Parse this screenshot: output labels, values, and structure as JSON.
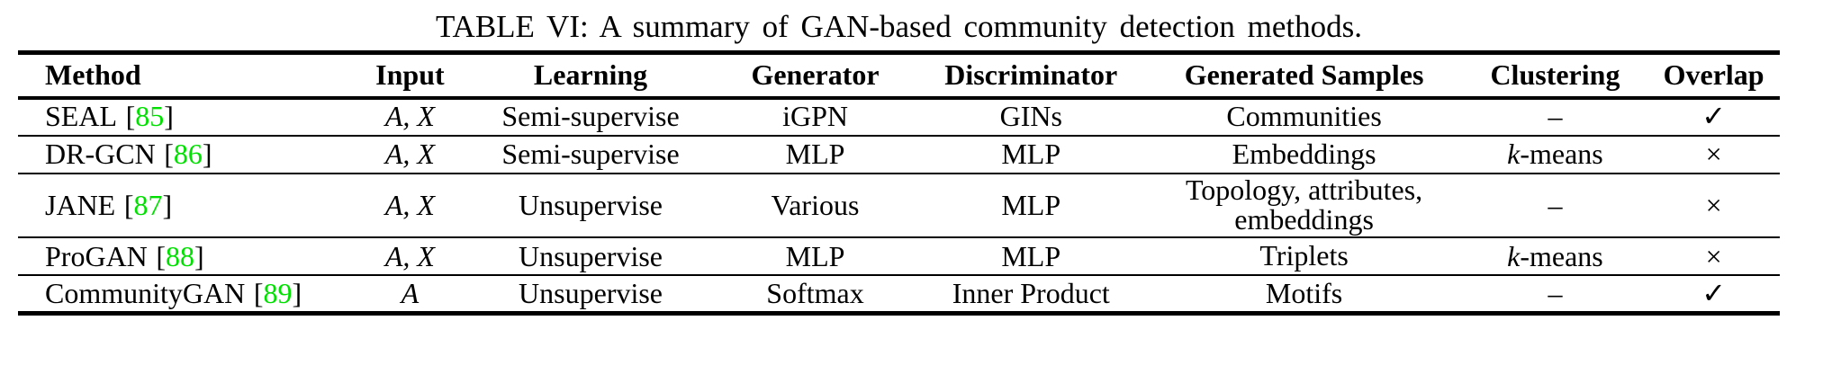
{
  "title": "TABLE VI: A summary of GAN-based community detection methods.",
  "colors": {
    "citation_green": "#00e000",
    "text": "#000000",
    "background": "#ffffff"
  },
  "symbols": {
    "cite_open": "[",
    "cite_close": "]",
    "check": "✓",
    "cross": "×",
    "none_dash": "–"
  },
  "table": {
    "columns": {
      "method": "Method",
      "input": "Input",
      "learning": "Learning",
      "generator": "Generator",
      "discriminator": "Discriminator",
      "samples": "Generated Samples",
      "clustering": "Clustering",
      "overlap": "Overlap"
    },
    "rows": [
      {
        "method": "SEAL",
        "cite": "85",
        "input": "A, X",
        "learning": "Semi-supervise",
        "generator": "iGPN",
        "discriminator": "GINs",
        "samples": "Communities",
        "clustering_k": "",
        "clustering": "–",
        "overlap": "✓"
      },
      {
        "method": "DR-GCN",
        "cite": "86",
        "input": "A, X",
        "learning": "Semi-supervise",
        "generator": "MLP",
        "discriminator": "MLP",
        "samples": "Embeddings",
        "clustering_k": "k",
        "clustering": "-means",
        "overlap": "×"
      },
      {
        "method": "JANE",
        "cite": "87",
        "input": "A, X",
        "learning": "Unsupervise",
        "generator": "Various",
        "discriminator": "MLP",
        "samples": "Topology, attributes, embeddings",
        "clustering_k": "",
        "clustering": "–",
        "overlap": "×"
      },
      {
        "method": "ProGAN",
        "cite": "88",
        "input": "A, X",
        "learning": "Unsupervise",
        "generator": "MLP",
        "discriminator": "MLP",
        "samples": "Triplets",
        "clustering_k": "k",
        "clustering": "-means",
        "overlap": "×"
      },
      {
        "method": "CommunityGAN",
        "cite": "89",
        "input": "A",
        "learning": "Unsupervise",
        "generator": "Softmax",
        "discriminator": "Inner Product",
        "samples": "Motifs",
        "clustering_k": "",
        "clustering": "–",
        "overlap": "✓"
      }
    ]
  }
}
